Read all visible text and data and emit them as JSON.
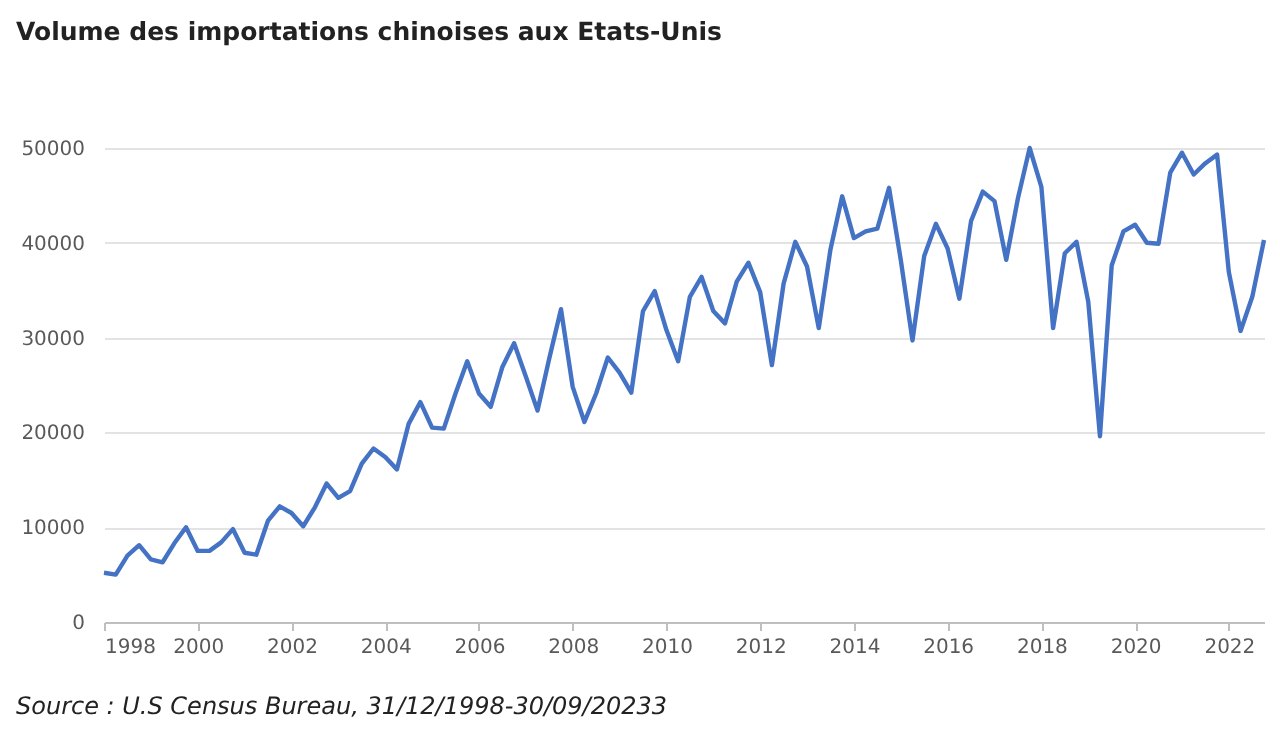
{
  "chart_data": {
    "type": "line",
    "title": "Volume des importations chinoises aux Etats-Unis",
    "annotations": [
      "Source : U.S Census Bureau, 31/12/1998-30/09/20233"
    ],
    "x": [
      1998,
      1998.25,
      1998.5,
      1998.75,
      1999,
      1999.25,
      1999.5,
      1999.75,
      2000,
      2000.25,
      2000.5,
      2000.75,
      2001,
      2001.25,
      2001.5,
      2001.75,
      2002,
      2002.25,
      2002.5,
      2002.75,
      2003,
      2003.25,
      2003.5,
      2003.75,
      2004,
      2004.25,
      2004.5,
      2004.75,
      2005,
      2005.25,
      2005.5,
      2005.75,
      2006,
      2006.25,
      2006.5,
      2006.75,
      2007,
      2007.25,
      2007.5,
      2007.75,
      2008,
      2008.25,
      2008.5,
      2008.75,
      2009,
      2009.25,
      2009.5,
      2009.75,
      2010,
      2010.25,
      2010.5,
      2010.75,
      2011,
      2011.25,
      2011.5,
      2011.75,
      2012,
      2012.25,
      2012.5,
      2012.75,
      2013,
      2013.25,
      2013.5,
      2013.75,
      2014,
      2014.25,
      2014.5,
      2014.75,
      2015,
      2015.25,
      2015.5,
      2015.75,
      2016,
      2016.25,
      2016.5,
      2016.75,
      2017,
      2017.25,
      2017.5,
      2017.75,
      2018,
      2018.25,
      2018.5,
      2018.75,
      2019,
      2019.25,
      2019.5,
      2019.75,
      2020,
      2020.25,
      2020.5,
      2020.75,
      2021,
      2021.25,
      2021.5,
      2021.75,
      2022,
      2022.25,
      2022.5,
      2022.75
    ],
    "series": [
      {
        "color": "#4472c4",
        "values": [
          5200,
          5000,
          7000,
          8100,
          6600,
          6300,
          8300,
          10000,
          7500,
          7500,
          8400,
          9800,
          7300,
          7100,
          10700,
          12200,
          11500,
          10100,
          12100,
          14600,
          13100,
          13800,
          16700,
          18300,
          17400,
          16100,
          20900,
          23200,
          20500,
          20400,
          24100,
          27500,
          24100,
          22700,
          26900,
          29400,
          25900,
          22300,
          27800,
          33000,
          24800,
          21100,
          24100,
          27900,
          26300,
          24200,
          32800,
          34900,
          30800,
          27500,
          34300,
          36400,
          32800,
          31500,
          35900,
          37900,
          34800,
          27100,
          35700,
          40100,
          37500,
          31000,
          39300,
          44900,
          40500,
          41200,
          41500,
          45800,
          38200,
          29700,
          38600,
          42000,
          39400,
          34100,
          42300,
          45400,
          44400,
          38200,
          44700,
          50000,
          45900,
          31000,
          38900,
          40100,
          33800,
          19600,
          37600,
          41200,
          41900,
          40000,
          39900,
          47400,
          49500,
          47200,
          48400,
          49300,
          36900,
          30700,
          34300,
          40300
        ]
      }
    ],
    "xlim": [
      1998,
      2022.75
    ],
    "xticks": [
      1998,
      2000,
      2002,
      2004,
      2006,
      2008,
      2010,
      2012,
      2014,
      2016,
      2018,
      2020,
      2022
    ],
    "ylim": [
      0,
      50000
    ],
    "yticks": [
      0,
      10000,
      20000,
      30000,
      40000,
      50000
    ],
    "grid": "y",
    "legend": false,
    "marker": "none",
    "line_style": "solid"
  }
}
